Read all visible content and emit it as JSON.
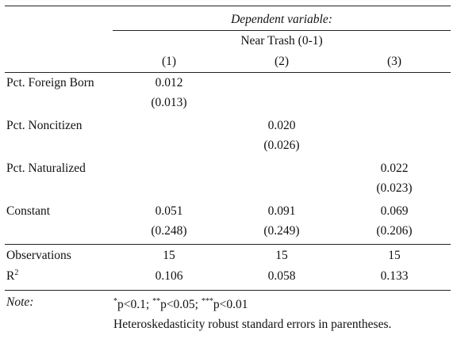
{
  "header": {
    "dep_var_label": "Dependent variable:",
    "dep_var_name": "Near Trash (0-1)",
    "columns": [
      "(1)",
      "(2)",
      "(3)"
    ]
  },
  "rows": [
    {
      "label": "Pct. Foreign Born",
      "coef": [
        "0.012",
        "",
        ""
      ],
      "se": [
        "(0.013)",
        "",
        ""
      ]
    },
    {
      "label": "Pct. Noncitizen",
      "coef": [
        "",
        "0.020",
        ""
      ],
      "se": [
        "",
        "(0.026)",
        ""
      ]
    },
    {
      "label": "Pct. Naturalized",
      "coef": [
        "",
        "",
        "0.022"
      ],
      "se": [
        "",
        "",
        "(0.023)"
      ]
    },
    {
      "label": "Constant",
      "coef": [
        "0.051",
        "0.091",
        "0.069"
      ],
      "se": [
        "(0.248)",
        "(0.249)",
        "(0.206)"
      ]
    }
  ],
  "stats": {
    "observations": {
      "label": "Observations",
      "values": [
        "15",
        "15",
        "15"
      ]
    },
    "r2": {
      "label": "R",
      "sup": "2",
      "values": [
        "0.106",
        "0.058",
        "0.133"
      ]
    }
  },
  "note": {
    "label": "Note:",
    "sig": [
      {
        "stars": "*",
        "text": "p<0.1;"
      },
      {
        "stars": "**",
        "text": "p<0.05;"
      },
      {
        "stars": "***",
        "text": "p<0.01"
      }
    ],
    "robust": "Heteroskedasticity robust standard errors in parentheses."
  }
}
